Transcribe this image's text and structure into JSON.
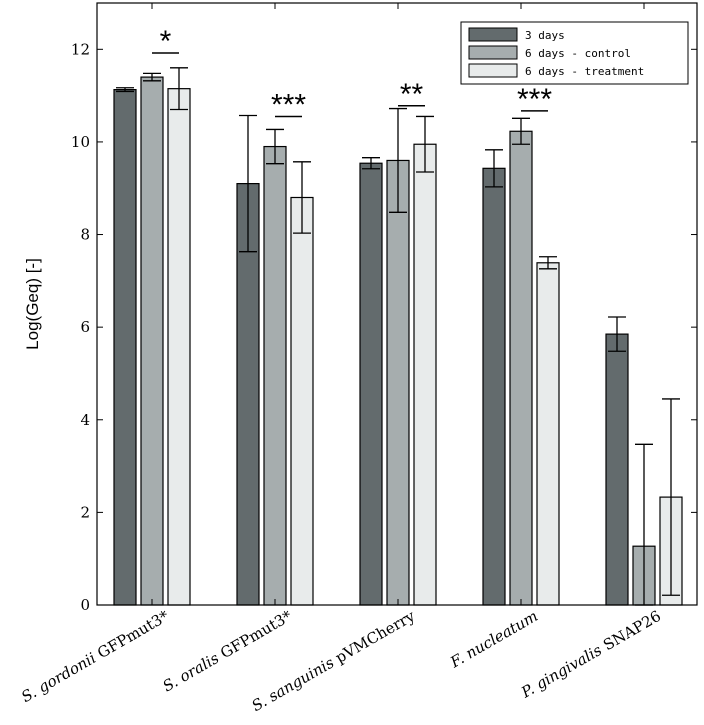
{
  "chart_data": {
    "type": "bar",
    "title": "",
    "xlabel": "",
    "ylabel": "Log(Geq) [-]",
    "ylim": [
      0,
      13
    ],
    "yticks": [
      0,
      2,
      4,
      6,
      8,
      10,
      12
    ],
    "grid": false,
    "legend_position": "top-right",
    "categories": [
      {
        "italic": "S. gordonii",
        "suffix": " GFPmut3*"
      },
      {
        "italic": "S. oralis",
        "suffix": " GFPmut3*"
      },
      {
        "italic": "S. sanguinis",
        "suffix": " pVMCherry"
      },
      {
        "italic": "F. nucleatum",
        "suffix": ""
      },
      {
        "italic": "P. gingivalis",
        "suffix": " SNAP26"
      }
    ],
    "series": [
      {
        "name": "3 days",
        "color": "#636b6d",
        "values": [
          11.13,
          9.1,
          9.54,
          9.43,
          5.85
        ],
        "errors": [
          0.04,
          1.47,
          0.12,
          0.4,
          0.37
        ]
      },
      {
        "name": "6 days - control",
        "color": "#a6adae",
        "values": [
          11.4,
          9.9,
          9.6,
          10.23,
          1.27
        ],
        "errors": [
          0.08,
          0.37,
          1.12,
          0.28,
          2.2
        ]
      },
      {
        "name": "6 days - treatment",
        "color": "#e8ebeb",
        "values": [
          11.15,
          8.8,
          9.95,
          7.39,
          2.33
        ],
        "errors": [
          0.45,
          0.77,
          0.6,
          0.13,
          2.12
        ]
      }
    ],
    "significance": [
      {
        "category_index": 0,
        "label": "*",
        "y": 11.92
      },
      {
        "category_index": 1,
        "label": "***",
        "y": 10.55
      },
      {
        "category_index": 2,
        "label": "**",
        "y": 10.78
      },
      {
        "category_index": 3,
        "label": "***",
        "y": 10.67
      }
    ]
  }
}
